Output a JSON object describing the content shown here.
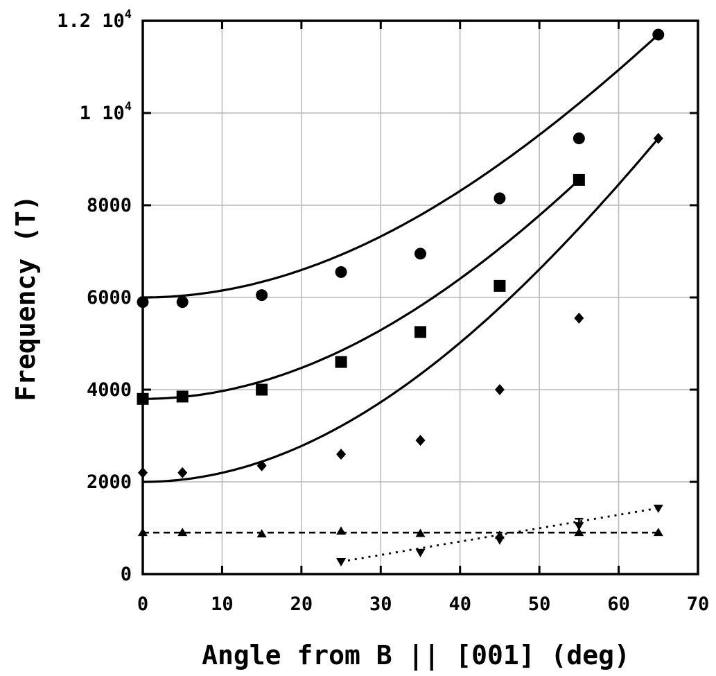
{
  "chart_data": {
    "type": "scatter",
    "title": "",
    "xlabel": "Angle from B || [001] (deg)",
    "ylabel": "Frequency (T)",
    "xlim": [
      0,
      70
    ],
    "ylim": [
      0,
      12000
    ],
    "x_ticks": [
      {
        "value": 0,
        "label": "0"
      },
      {
        "value": 10,
        "label": "10"
      },
      {
        "value": 20,
        "label": "20"
      },
      {
        "value": 30,
        "label": "30"
      },
      {
        "value": 40,
        "label": "40"
      },
      {
        "value": 50,
        "label": "50"
      },
      {
        "value": 60,
        "label": "60"
      },
      {
        "value": 70,
        "label": "70"
      }
    ],
    "y_ticks": [
      {
        "value": 0,
        "label": "0"
      },
      {
        "value": 2000,
        "label": "2000"
      },
      {
        "value": 4000,
        "label": "4000"
      },
      {
        "value": 6000,
        "label": "6000"
      },
      {
        "value": 8000,
        "label": "8000"
      },
      {
        "value": 10000,
        "label": "1 10",
        "exp": "4"
      },
      {
        "value": 12000,
        "label": "1.2 10",
        "exp": "4"
      }
    ],
    "grid": true,
    "series": [
      {
        "marker": "circle",
        "x": [
          0,
          5,
          15,
          25,
          35,
          45,
          55,
          65
        ],
        "y": [
          5900,
          5900,
          6050,
          6550,
          6950,
          8150,
          9450,
          11700
        ],
        "fit": {
          "style": "solid",
          "base": 6000,
          "xmax": 65
        }
      },
      {
        "marker": "square",
        "x": [
          0,
          5,
          15,
          25,
          35,
          45,
          55
        ],
        "y": [
          3800,
          3850,
          4000,
          4600,
          5250,
          6250,
          8550
        ],
        "fit": {
          "style": "solid",
          "base": 3800,
          "xmax": 55
        }
      },
      {
        "marker": "diamond",
        "x": [
          0,
          5,
          15,
          25,
          35,
          45,
          55,
          65
        ],
        "y": [
          2200,
          2200,
          2350,
          2600,
          2900,
          4000,
          5550,
          9450
        ],
        "fit": {
          "style": "solid",
          "base": 2000,
          "xmax": 65
        }
      },
      {
        "marker": "triangle-up",
        "x": [
          0,
          5,
          15,
          25,
          35,
          45,
          55,
          65
        ],
        "y": [
          900,
          900,
          870,
          930,
          880,
          840,
          900,
          900
        ],
        "fit": {
          "style": "dashed",
          "y0": 900,
          "y1": 900
        }
      },
      {
        "marker": "triangle-down",
        "x": [
          25,
          35,
          45,
          55,
          65
        ],
        "y": [
          270,
          470,
          740,
          1050,
          1430
        ],
        "error": [
          0,
          0,
          0,
          150,
          0
        ],
        "fit": {
          "style": "dotted",
          "y0": 270,
          "y1": 1430
        }
      }
    ]
  }
}
